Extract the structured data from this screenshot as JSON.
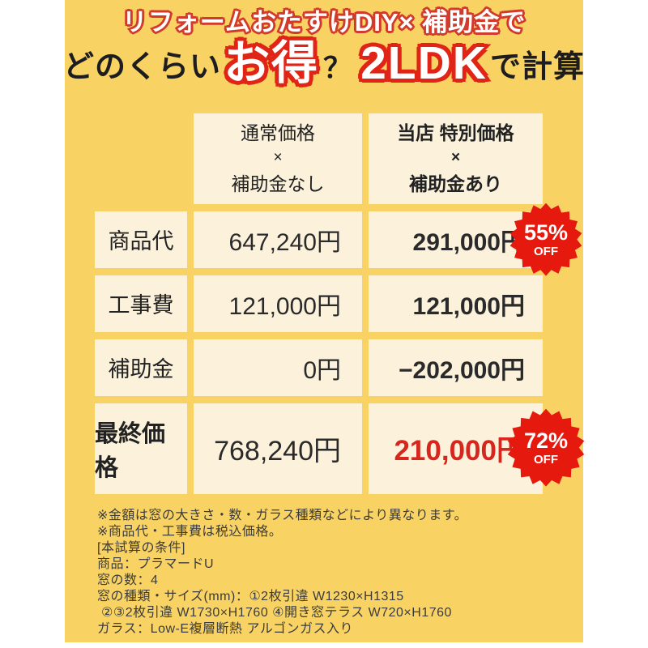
{
  "title": {
    "line1": "リフォームおたすけDIY× 補助金で",
    "line2_prefix": "どのくらい",
    "line2_highlight1": "お得",
    "line2_question": "？",
    "line2_highlight2": "2LDK",
    "line2_suffix": "で計算"
  },
  "table": {
    "col_headers": [
      {
        "lines": [
          "通常価格",
          "×",
          "補助金なし"
        ]
      },
      {
        "lines": [
          "当店 特別価格",
          "×",
          "補助金あり"
        ]
      }
    ],
    "rows": [
      {
        "label": "商品代",
        "normal": "647,240円",
        "special": "291,000円",
        "badge": {
          "percent": "55%",
          "off": "OFF"
        }
      },
      {
        "label": "工事費",
        "normal": "121,000円",
        "special": "121,000円"
      },
      {
        "label": "補助金",
        "normal": "0円",
        "special": "−202,000円"
      },
      {
        "label": "最終価格",
        "normal": "768,240円",
        "special": "210,000円",
        "badge": {
          "percent": "72%",
          "off": "OFF"
        }
      }
    ]
  },
  "notes": [
    "※金額は窓の大きさ・数・ガラス種類などにより異なります。",
    "※商品代・工事費は税込価格。",
    "[本試算の条件]",
    "商品：プラマードU",
    "窓の数：4",
    "窓の種類・サイズ(mm)：①2枚引違 W1230×H1315",
    "②③2枚引違 W1730×H1760 ④開き窓テラス W720×H1760",
    "ガラス：Low-E複層断熱 アルゴンガス入り"
  ],
  "colors": {
    "background_yellow": "#f8d364",
    "cell_cream": "#fcf2dc",
    "accent_red": "#e02517",
    "badge_red": "#e6190e",
    "price_red": "#d7261d",
    "text_black": "#1d1d1f"
  }
}
